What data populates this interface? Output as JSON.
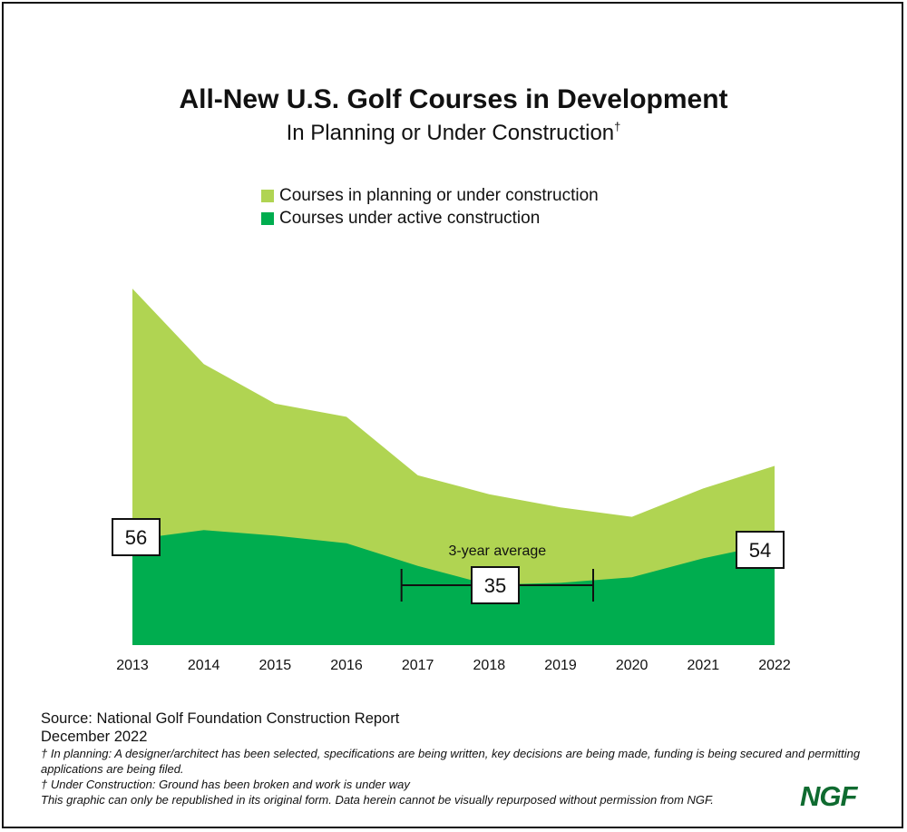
{
  "title": "All-New U.S. Golf Courses in Development",
  "subtitle": "In Planning or Under Construction",
  "subtitle_mark": "†",
  "colors": {
    "planning": "#b0d452",
    "construction": "#00ad4f",
    "logo": "#0f6b30"
  },
  "legend": {
    "planning": "Courses in planning or under construction",
    "construction": "Courses under active construction"
  },
  "chart_data": {
    "type": "area",
    "x": [
      "2013",
      "2014",
      "2015",
      "2016",
      "2017",
      "2018",
      "2019",
      "2020",
      "2021",
      "2022"
    ],
    "series": [
      {
        "name": "Courses in planning or under construction",
        "values": [
          189,
          149,
          128,
          121,
          90,
          80,
          73,
          68,
          83,
          95
        ]
      },
      {
        "name": "Courses under active construction",
        "values": [
          56,
          61,
          58,
          54,
          42,
          32,
          33,
          36,
          46,
          54
        ]
      }
    ],
    "ylim": [
      0,
      190
    ],
    "grid": false,
    "legend_position": "top",
    "labels": [
      {
        "text": "56",
        "x": "2013",
        "value": 56
      },
      {
        "text": "35",
        "x": "2018",
        "value": 35
      },
      {
        "text": "54",
        "x": "2022",
        "value": 54
      }
    ],
    "average_bracket": {
      "label": "3-year average",
      "from": "2017",
      "to": "2019",
      "value": 35
    }
  },
  "footer": {
    "source": "Source: National Golf Foundation Construction Report",
    "date": "December 2022",
    "note_planning": "† In planning: A designer/architect has been selected, specifications are being written, key decisions are being made, funding is being secured and permitting applications are being filed.",
    "note_construction": "† Under Construction: Ground has been broken and work is under way",
    "note_rights": "This graphic can only be republished in its original form. Data herein cannot be visually repurposed without permission from NGF."
  },
  "logo_text": "NGF"
}
